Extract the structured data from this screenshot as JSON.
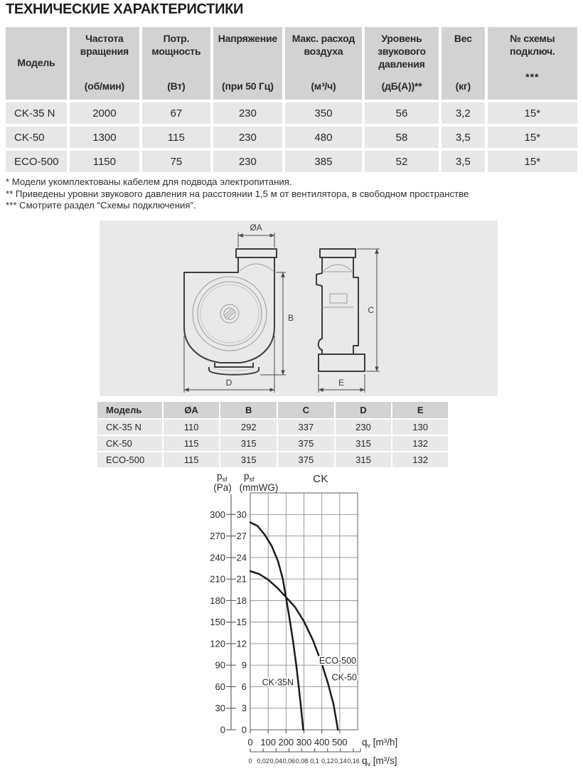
{
  "title": "ТЕХНИЧЕСКИЕ ХАРАКТЕРИСТИКИ",
  "spec_table": {
    "header": [
      {
        "name": "Модель",
        "unit": ""
      },
      {
        "name": "Частота вращения",
        "unit": "(об/мин)"
      },
      {
        "name": "Потр. мощность",
        "unit": "(Вт)"
      },
      {
        "name": "Напряжение",
        "unit": "(при 50 Гц)"
      },
      {
        "name": "Макс. расход воздуха",
        "unit": "(м³/ч)"
      },
      {
        "name": "Уровень звукового давления",
        "unit": "(дБ(А))**"
      },
      {
        "name": "Вес",
        "unit": "(кг)"
      },
      {
        "name": "№ схемы подключ.",
        "unit": "***"
      }
    ],
    "rows": [
      [
        "CK-35 N",
        "2000",
        "67",
        "230",
        "350",
        "56",
        "3,2",
        "15*"
      ],
      [
        "CK-50",
        "1300",
        "115",
        "230",
        "480",
        "58",
        "3,5",
        "15*"
      ],
      [
        "ECO-500",
        "1150",
        "75",
        "230",
        "385",
        "52",
        "3,5",
        "15*"
      ]
    ]
  },
  "footnotes": [
    "* Модели укомплектованы кабелем для подвода электропитания.",
    "** Приведены уровни звукового давления на расстоянии 1,5 м от вентилятора, в свободном пространстве",
    "*** Смотрите раздел “Схемы подключения”."
  ],
  "drawing": {
    "dim_labels": {
      "a": "ØA",
      "b": "B",
      "c": "C",
      "d": "D",
      "e": "E"
    }
  },
  "dim_table": {
    "header": [
      "Модель",
      "ØA",
      "B",
      "C",
      "D",
      "E"
    ],
    "rows": [
      [
        "CK-35 N",
        "110",
        "292",
        "337",
        "230",
        "130"
      ],
      [
        "CK-50",
        "115",
        "315",
        "375",
        "315",
        "132"
      ],
      [
        "ECO-500",
        "115",
        "315",
        "375",
        "315",
        "132"
      ]
    ]
  },
  "chart_data": {
    "type": "line",
    "title": "CK",
    "y_axis_pa": {
      "symbol": "p",
      "symbol_sub": "sf",
      "unit": "(Pa)",
      "ticks": [
        300,
        270,
        240,
        210,
        180,
        150,
        120,
        90,
        60,
        30,
        0
      ]
    },
    "y_axis_mmwg": {
      "symbol": "p",
      "symbol_sub": "sf",
      "unit": "(mmWG)",
      "ticks": [
        30,
        27,
        24,
        21,
        18,
        15,
        12,
        9,
        6,
        3,
        0
      ],
      "max": 33,
      "grid_step": 3
    },
    "x_axis_m3h": {
      "symbol": "q",
      "symbol_sub": "v",
      "unit": "[m³/h]",
      "ticks": [
        0,
        100,
        200,
        300,
        400,
        500
      ],
      "max": 600,
      "grid_step": 100
    },
    "x_axis_m3s": {
      "symbol": "q",
      "symbol_sub": "v",
      "unit": "[m³/s]",
      "tick_labels": [
        "0",
        "0,02",
        "0,04",
        "0,06",
        "0,08",
        "0,1",
        "0,12",
        "0,14",
        "0,16"
      ],
      "tick_step_m3h": 72
    },
    "series": [
      {
        "name": "CK-35N",
        "points_m3h_mmwg": [
          [
            0,
            28.9
          ],
          [
            40,
            28.4
          ],
          [
            80,
            27.2
          ],
          [
            120,
            25.6
          ],
          [
            155,
            23.5
          ],
          [
            182,
            21.0
          ],
          [
            200,
            18.4
          ],
          [
            220,
            15.4
          ],
          [
            240,
            12.2
          ],
          [
            257,
            9.0
          ],
          [
            271,
            6.0
          ],
          [
            284,
            3.0
          ],
          [
            296,
            0
          ]
        ]
      },
      {
        "name": "ECO-500 / CK-50",
        "points_m3h_mmwg": [
          [
            0,
            22.1
          ],
          [
            50,
            21.7
          ],
          [
            100,
            20.9
          ],
          [
            150,
            19.8
          ],
          [
            195,
            18.6
          ],
          [
            250,
            17.1
          ],
          [
            300,
            15.1
          ],
          [
            350,
            12.5
          ],
          [
            400,
            9.2
          ],
          [
            435,
            6.4
          ],
          [
            465,
            3.6
          ],
          [
            490,
            0
          ]
        ]
      }
    ],
    "curve_labels": [
      {
        "text": "CK-35N",
        "x_m3h": 66,
        "y_mmwg": 6.6,
        "anchor": "start"
      },
      {
        "text": "ECO-500",
        "x_m3h": 592,
        "y_mmwg": 9.6,
        "anchor": "end"
      },
      {
        "text": "CK-50",
        "x_m3h": 596,
        "y_mmwg": 7.3,
        "anchor": "end"
      }
    ]
  }
}
